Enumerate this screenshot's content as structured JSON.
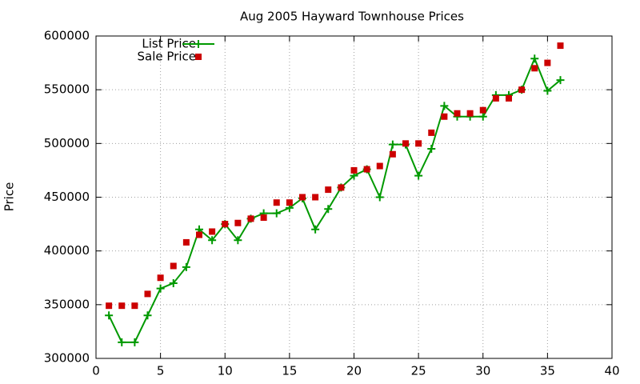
{
  "chart_data": {
    "type": "line",
    "title": "Aug 2005 Hayward Townhouse Prices",
    "y_label": "Price",
    "x": [
      1,
      2,
      3,
      4,
      5,
      6,
      7,
      8,
      9,
      10,
      11,
      12,
      13,
      14,
      15,
      16,
      17,
      18,
      19,
      20,
      21,
      22,
      23,
      24,
      25,
      26,
      27,
      28,
      29,
      30,
      31,
      32,
      33,
      34,
      35,
      36
    ],
    "series": [
      {
        "name": "List Price",
        "color": "#009900",
        "mode": "lines+markers",
        "marker": "plus",
        "values": [
          340000,
          315000,
          315000,
          340000,
          365000,
          370000,
          385000,
          420000,
          410000,
          425000,
          410000,
          430000,
          435000,
          435000,
          440000,
          449000,
          420000,
          439000,
          459000,
          470000,
          476000,
          450000,
          499000,
          499000,
          470000,
          495000,
          535000,
          525000,
          525000,
          525000,
          545000,
          545000,
          550000,
          579000,
          549000,
          559000
        ]
      },
      {
        "name": "Sale Price",
        "color": "#cc0000",
        "mode": "markers",
        "marker": "square",
        "values": [
          349000,
          349000,
          349000,
          360000,
          375000,
          386000,
          408000,
          415000,
          418000,
          425000,
          426000,
          430000,
          431000,
          445000,
          445000,
          450000,
          450000,
          457000,
          459000,
          475000,
          476000,
          479000,
          490000,
          500000,
          500000,
          510000,
          525000,
          528000,
          528000,
          531000,
          542000,
          542000,
          550000,
          570000,
          575000,
          591000
        ]
      }
    ],
    "xlim": [
      0,
      40
    ],
    "xticks": [
      0,
      5,
      10,
      15,
      20,
      25,
      30,
      35,
      40
    ],
    "ylim": [
      300000,
      600000
    ],
    "yticks": [
      300000,
      350000,
      400000,
      450000,
      500000,
      550000,
      600000
    ],
    "grid": true,
    "legend": "top-left"
  }
}
